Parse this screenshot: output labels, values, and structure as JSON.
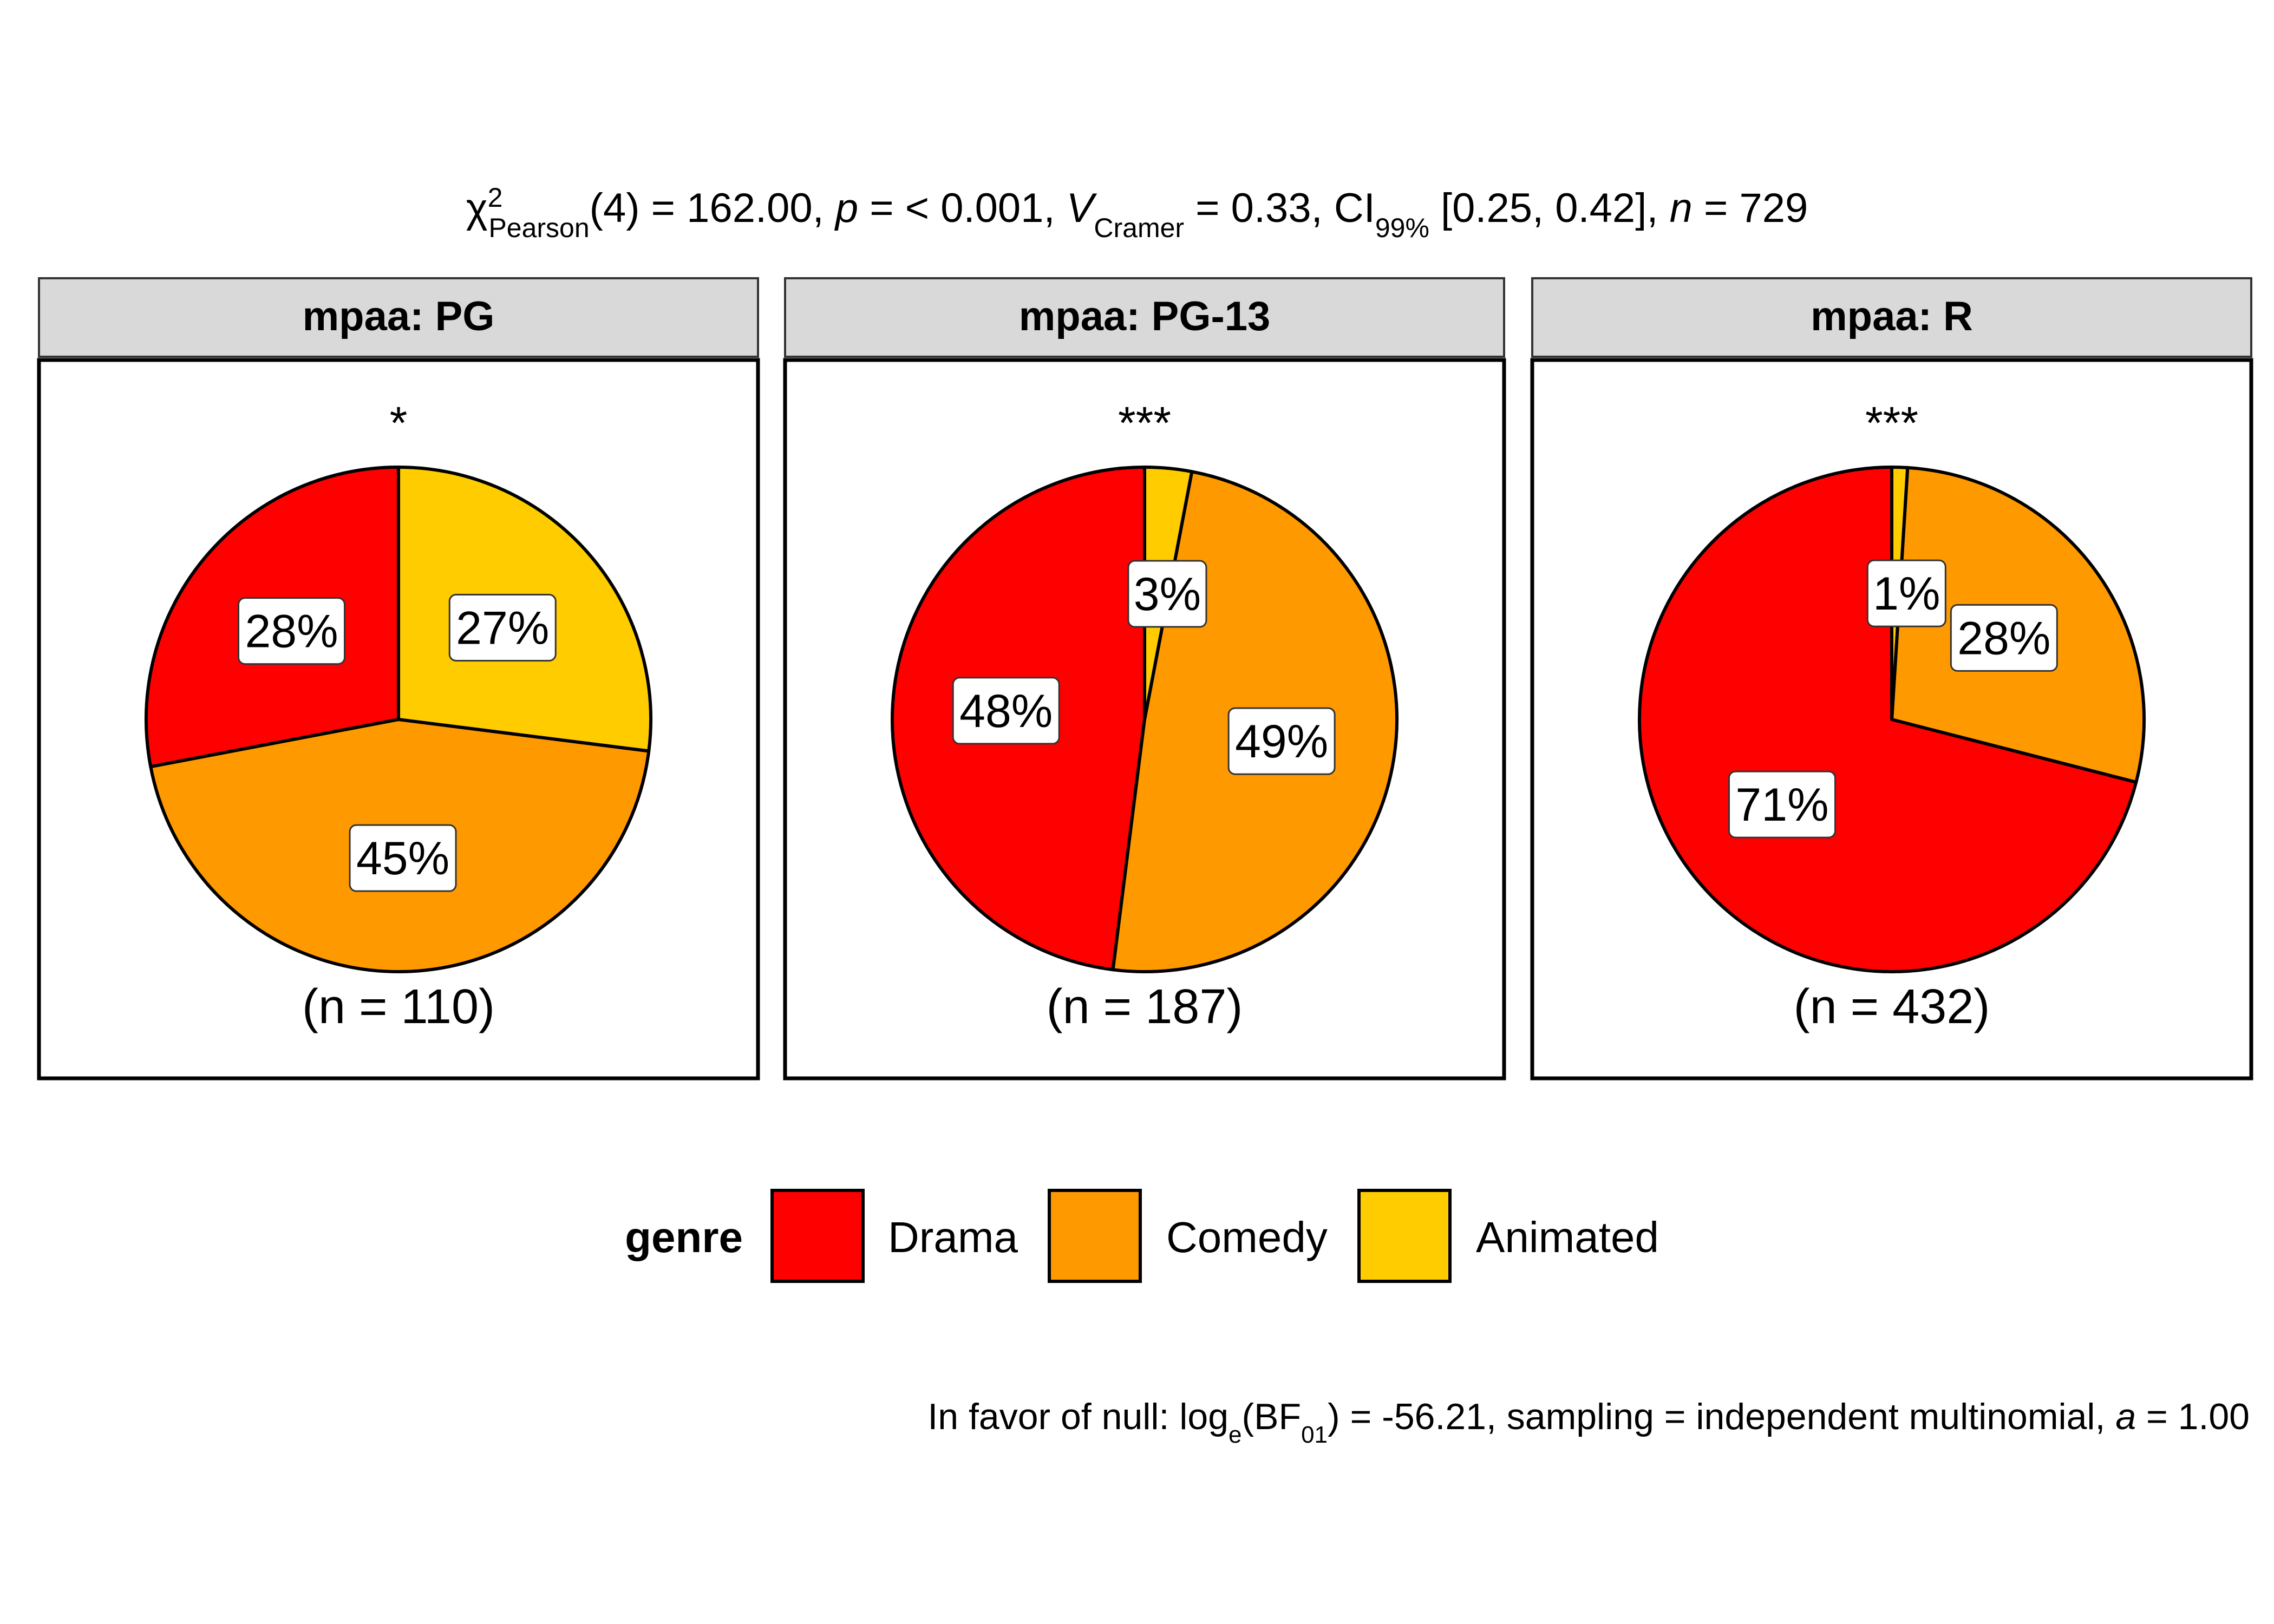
{
  "chart_data": {
    "type": "pie",
    "subtitle": {
      "chi": "χ",
      "chi_sup": "2",
      "chi_sub": "Pearson",
      "part1": "(4) = 162.00, ",
      "p_letter": "p",
      "part2": " = < 0.001, ",
      "v_letter": "V",
      "v_sub": "Cramer",
      "part3": " = 0.33, CI",
      "ci_sub": "99%",
      "part4": " [0.25, 0.42], ",
      "n_letter": "n",
      "part5": " = 729"
    },
    "categories": [
      "Drama",
      "Comedy",
      "Animated"
    ],
    "colors": {
      "Drama": "#FF0000",
      "Comedy": "#FF9900",
      "Animated": "#FFCC00"
    },
    "panels": [
      {
        "strip": "mpaa: PG",
        "signif": "*",
        "n_label": "(n = 110)",
        "values": {
          "Drama": 28,
          "Comedy": 45,
          "Animated": 27
        },
        "labels": {
          "Drama": "28%",
          "Comedy": "45%",
          "Animated": "27%"
        }
      },
      {
        "strip": "mpaa: PG-13",
        "signif": "***",
        "n_label": "(n = 187)",
        "values": {
          "Drama": 48,
          "Comedy": 49,
          "Animated": 3
        },
        "labels": {
          "Drama": "48%",
          "Comedy": "49%",
          "Animated": "3%"
        }
      },
      {
        "strip": "mpaa: R",
        "signif": "***",
        "n_label": "(n = 432)",
        "values": {
          "Drama": 71,
          "Comedy": 28,
          "Animated": 1
        },
        "labels": {
          "Drama": "71%",
          "Comedy": "28%",
          "Animated": "1%"
        }
      }
    ],
    "legend": {
      "title": "genre",
      "placement": "bottom",
      "items": [
        "Drama",
        "Comedy",
        "Animated"
      ]
    },
    "caption": {
      "part1": "In favor of null: log",
      "log_sub": "e",
      "part2": "(BF",
      "bf_sub": "01",
      "part3": ") = -56.21, sampling = independent multinomial, ",
      "a_letter": "a",
      "part4": " = 1.00"
    }
  }
}
